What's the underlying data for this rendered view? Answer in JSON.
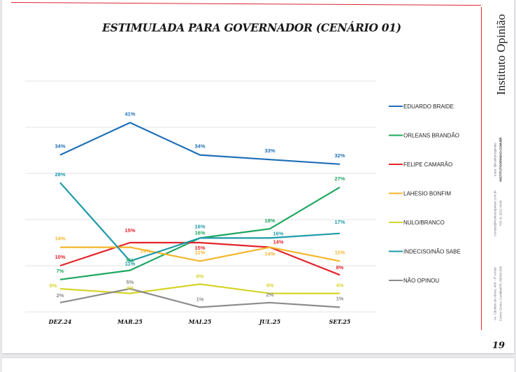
{
  "page": {
    "brand": "Instituto Opinião",
    "page_number": "19",
    "side_texts": [
      "insta: @institutoopiniao",
      "INSTITUTOOPINIAO.COM.BR",
      "contato@institutoopiniao.com.br",
      "+55 41 3022 6445",
      "Av. Cândido de Abreu, 469 - 6º Andar",
      "Centro Cívico, Curitiba/PR, 80530-000"
    ]
  },
  "chart_data": {
    "type": "line",
    "title": "ESTIMULADA PARA GOVERNADOR (CENÁRIO 01)",
    "xlabel": "",
    "ylabel": "",
    "ylim": [
      0,
      50
    ],
    "grid": true,
    "gridline_step": 10,
    "legend_position": "right",
    "categories": [
      "DEZ.24",
      "MAR.25",
      "MAI.25",
      "JUL.25",
      "SET.25"
    ],
    "series": [
      {
        "name": "EDUARDO BRAIDE",
        "color": "#1f6fb8",
        "values": [
          34,
          41,
          34,
          33,
          32
        ],
        "labels": [
          "34%",
          "41%",
          "34%",
          "33%",
          "32%"
        ]
      },
      {
        "name": "ORLEANS BRANDÃO",
        "color": "#1fa760",
        "values": [
          7,
          9,
          16,
          18,
          27
        ],
        "labels": [
          "7%",
          "9%",
          "16%",
          "18%",
          "27%"
        ]
      },
      {
        "name": "FELIPE CAMARÃO",
        "color": "#e3242b",
        "values": [
          10,
          15,
          15,
          14,
          8
        ],
        "labels": [
          "10%",
          "15%",
          "15%",
          "14%",
          "8%"
        ]
      },
      {
        "name": "LAHESIO BONFIM",
        "color": "#f5b52a",
        "values": [
          14,
          14,
          11,
          14,
          11
        ],
        "labels": [
          "14%",
          "14%",
          "11%",
          "14%",
          "11%"
        ]
      },
      {
        "name": "NULO/BRANCO",
        "color": "#d6d42a",
        "values": [
          5,
          4,
          6,
          4,
          4
        ],
        "labels": [
          "5%",
          "4%",
          "6%",
          "4%",
          "4%"
        ]
      },
      {
        "name": "INDECISO/NÃO SABE",
        "color": "#1d9aa8",
        "values": [
          28,
          11,
          16,
          16,
          17
        ],
        "labels": [
          "28%",
          "11%",
          "16%",
          "16%",
          "17%"
        ]
      },
      {
        "name": "NÃO OPINOU",
        "color": "#8c8c8c",
        "values": [
          2,
          5,
          1,
          2,
          1
        ],
        "labels": [
          "2%",
          "5%",
          "1%",
          "2%",
          "1%"
        ]
      }
    ]
  }
}
